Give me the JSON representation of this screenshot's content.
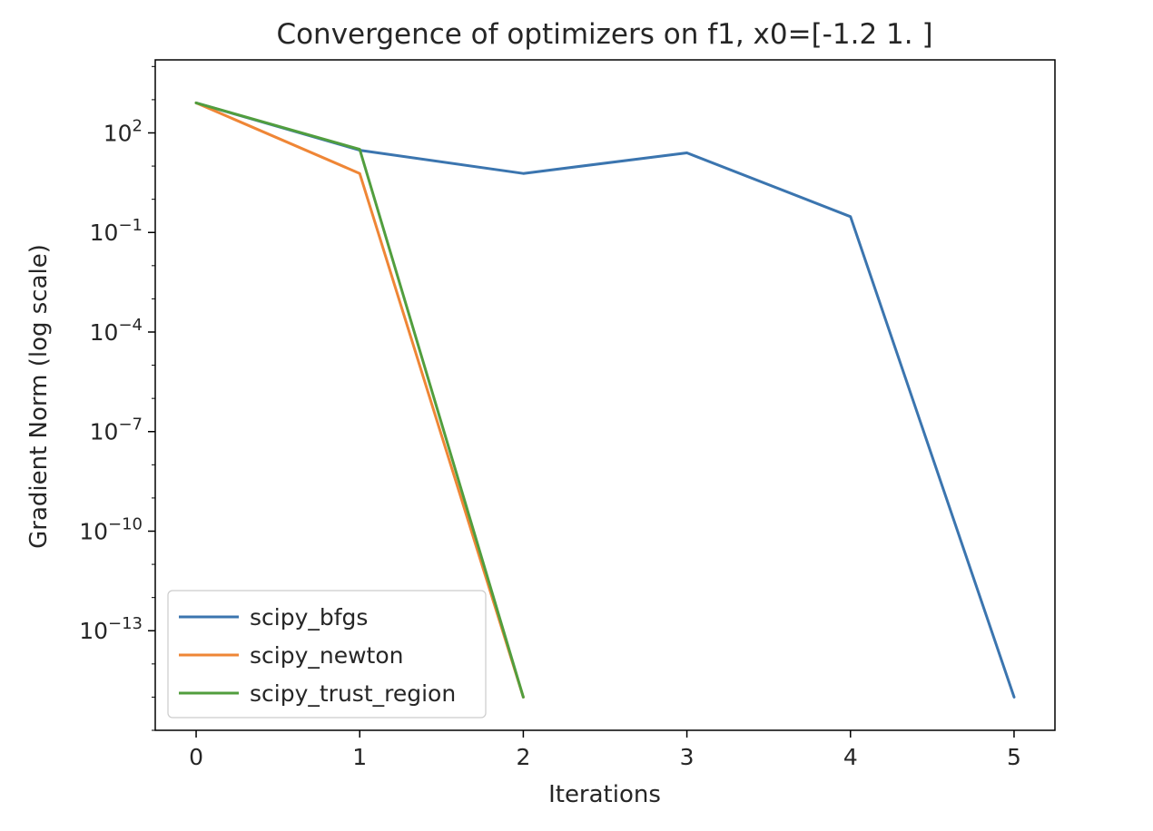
{
  "chart_data": {
    "type": "line",
    "title": "Convergence of optimizers on f1, x0=[-1.2  1. ]",
    "xlabel": "Iterations",
    "ylabel": "Gradient Norm (log scale)",
    "yscale": "log",
    "xlim": [
      -0.25,
      5.25
    ],
    "ylim_log10": [
      -16.0,
      4.2
    ],
    "xticks": [
      0,
      1,
      2,
      3,
      4,
      5
    ],
    "yticks": [
      {
        "exp": 2,
        "base": "10",
        "sup": "2"
      },
      {
        "exp": -1,
        "base": "10",
        "sup": "−1"
      },
      {
        "exp": -4,
        "base": "10",
        "sup": "−4"
      },
      {
        "exp": -7,
        "base": "10",
        "sup": "−7"
      },
      {
        "exp": -10,
        "base": "10",
        "sup": "−10"
      },
      {
        "exp": -13,
        "base": "10",
        "sup": "−13"
      }
    ],
    "legend_position": "lower-left",
    "grid": false,
    "series": [
      {
        "name": "scipy_bfgs",
        "color": "#3b75af",
        "x": [
          0,
          1,
          2,
          3,
          4,
          5
        ],
        "y": [
          800,
          30,
          6,
          25,
          0.3,
          1e-15
        ]
      },
      {
        "name": "scipy_newton",
        "color": "#ef8636",
        "x": [
          0,
          1,
          2
        ],
        "y": [
          800,
          6,
          1e-15
        ]
      },
      {
        "name": "scipy_trust_region",
        "color": "#519e3e",
        "x": [
          0,
          1,
          2
        ],
        "y": [
          800,
          32,
          1e-15
        ]
      }
    ]
  }
}
